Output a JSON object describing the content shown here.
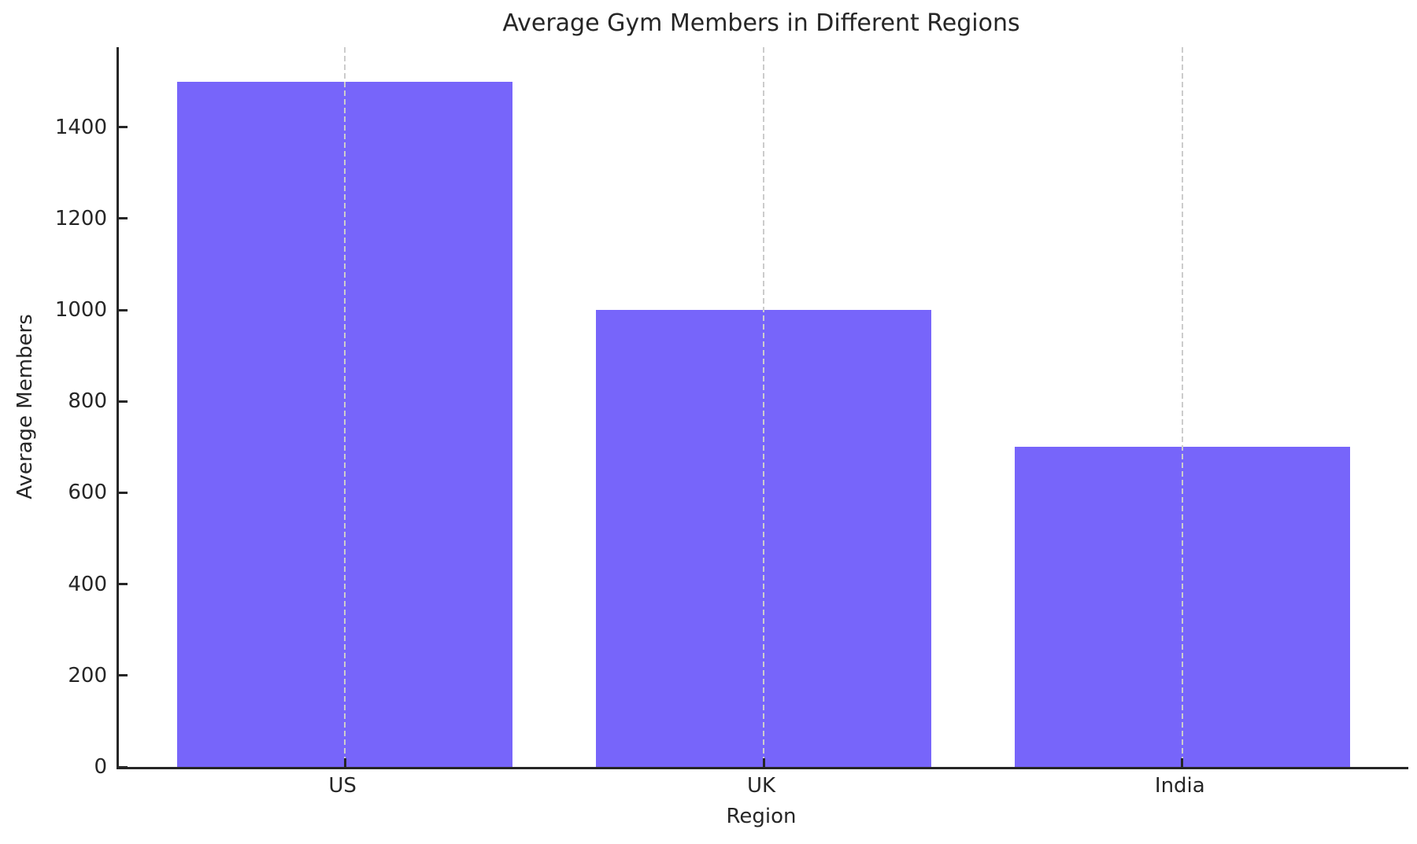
{
  "chart_data": {
    "type": "bar",
    "title": "Average Gym Members in Different Regions",
    "xlabel": "Region",
    "ylabel": "Average Members",
    "categories": [
      "US",
      "UK",
      "India"
    ],
    "values": [
      1500,
      1000,
      700
    ],
    "yticks": [
      0,
      200,
      400,
      600,
      800,
      1000,
      1200,
      1400
    ],
    "ylim": [
      0,
      1575
    ],
    "xlim": [
      -0.54,
      2.54
    ],
    "bar_width": 0.8,
    "grid": "vertical-dashed-at-category-centers, drawn over bars",
    "legend": "none",
    "colors": {
      "bar": "#7765FA",
      "gridline": "#cccccc",
      "axis": "#262626",
      "text": "#262626",
      "background": "#ffffff"
    }
  }
}
